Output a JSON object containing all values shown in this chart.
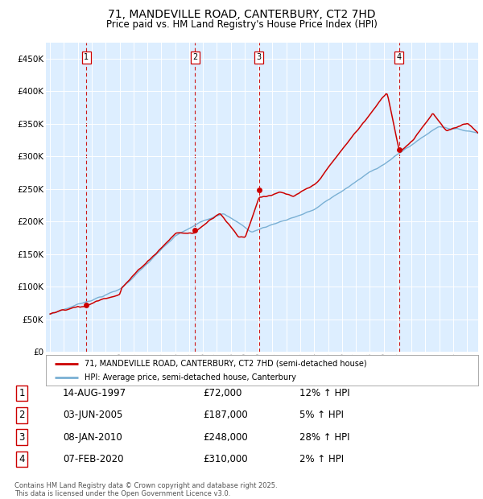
{
  "title": "71, MANDEVILLE ROAD, CANTERBURY, CT2 7HD",
  "subtitle": "Price paid vs. HM Land Registry's House Price Index (HPI)",
  "background_color": "#ddeeff",
  "ylim": [
    0,
    475000
  ],
  "yticks": [
    0,
    50000,
    100000,
    150000,
    200000,
    250000,
    300000,
    350000,
    400000,
    450000
  ],
  "ytick_labels": [
    "£0",
    "£50K",
    "£100K",
    "£150K",
    "£200K",
    "£250K",
    "£300K",
    "£350K",
    "£400K",
    "£450K"
  ],
  "xlim_start": 1994.7,
  "xlim_end": 2025.8,
  "sale_dates": [
    1997.618,
    2005.418,
    2010.022,
    2020.096
  ],
  "sale_prices": [
    72000,
    187000,
    248000,
    310000
  ],
  "sale_labels": [
    "1",
    "2",
    "3",
    "4"
  ],
  "red_line_color": "#cc0000",
  "blue_line_color": "#7ab0d4",
  "dashed_line_color": "#cc0000",
  "legend_label_red": "71, MANDEVILLE ROAD, CANTERBURY, CT2 7HD (semi-detached house)",
  "legend_label_blue": "HPI: Average price, semi-detached house, Canterbury",
  "footer_text": "Contains HM Land Registry data © Crown copyright and database right 2025.\nThis data is licensed under the Open Government Licence v3.0.",
  "table_entries": [
    {
      "num": "1",
      "date": "14-AUG-1997",
      "price": "£72,000",
      "pct": "12% ↑ HPI"
    },
    {
      "num": "2",
      "date": "03-JUN-2005",
      "price": "£187,000",
      "pct": "5% ↑ HPI"
    },
    {
      "num": "3",
      "date": "08-JAN-2010",
      "price": "£248,000",
      "pct": "28% ↑ HPI"
    },
    {
      "num": "4",
      "date": "07-FEB-2020",
      "price": "£310,000",
      "pct": "2% ↑ HPI"
    }
  ]
}
